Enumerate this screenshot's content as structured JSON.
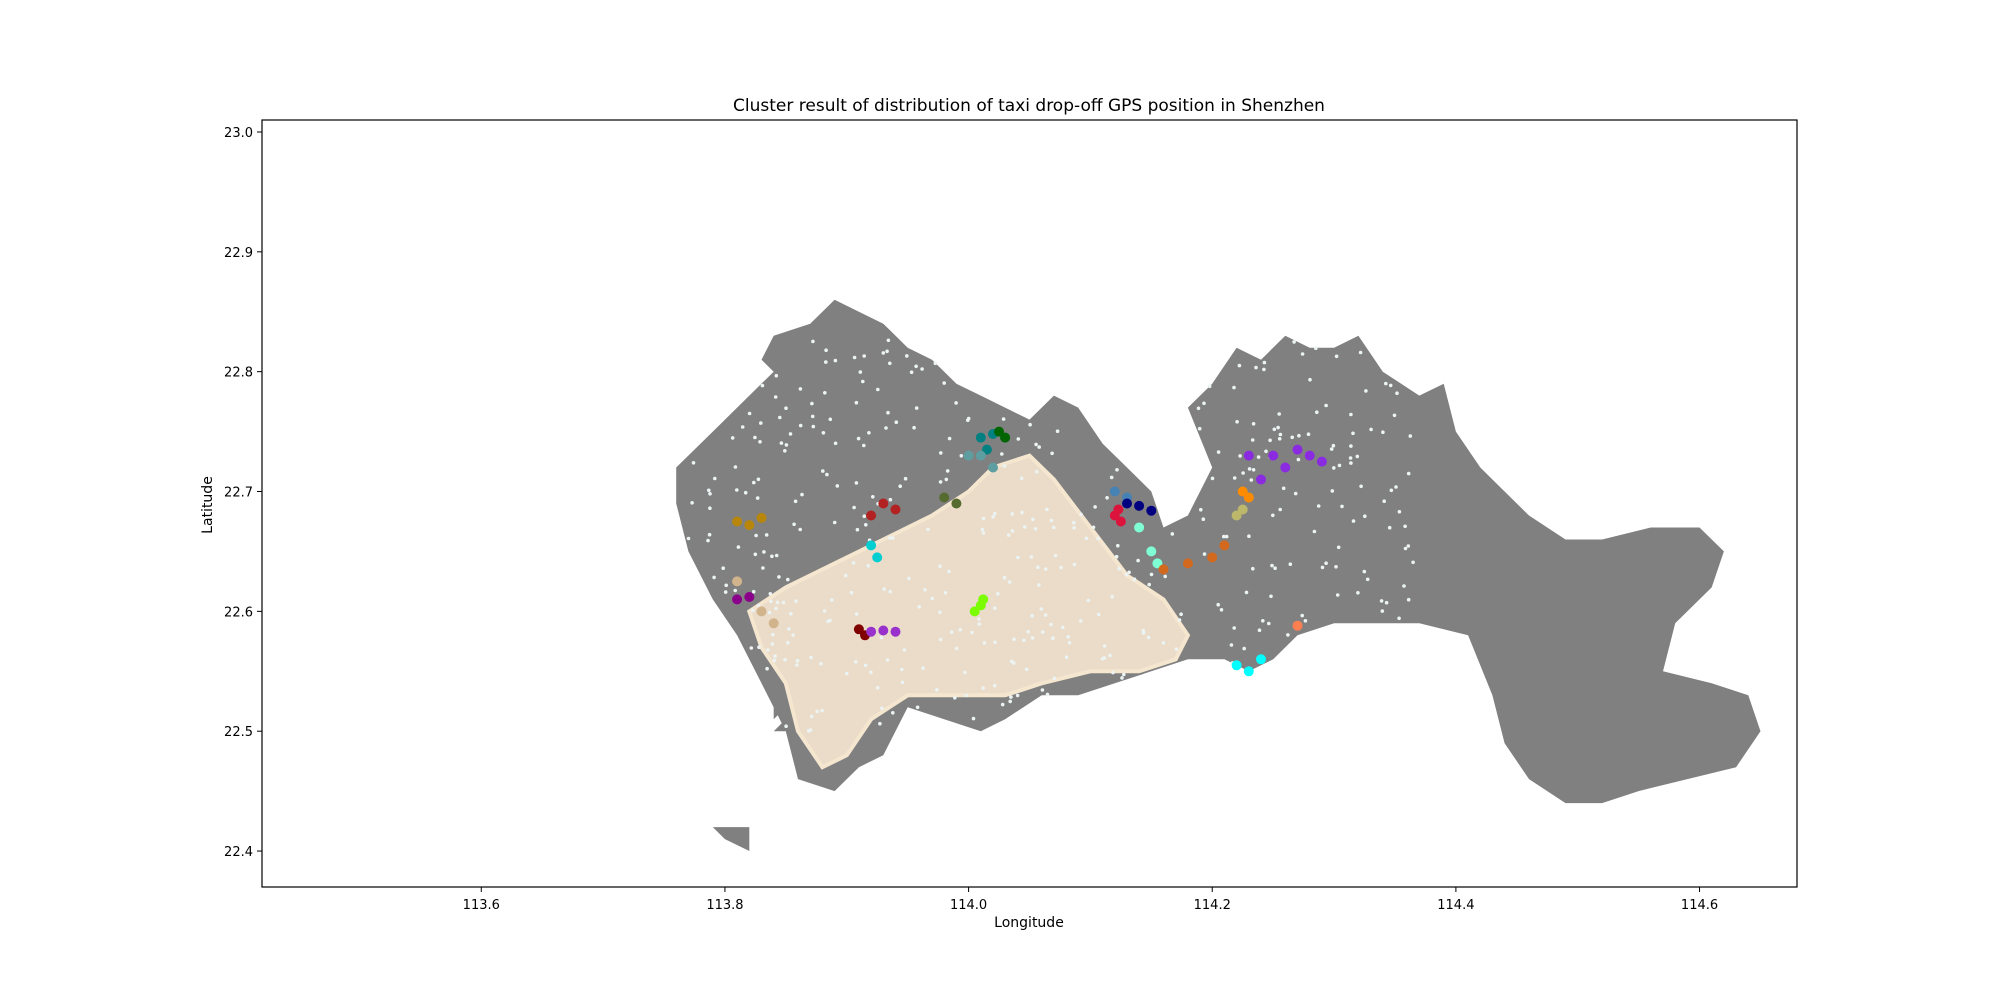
{
  "chart_data": {
    "type": "scatter",
    "title": "Cluster result of distribution of taxi drop-off GPS position in Shenzhen",
    "xlabel": "Longitude",
    "ylabel": "Latitude",
    "xlim": [
      113.42,
      114.68
    ],
    "ylim": [
      22.37,
      23.01
    ],
    "xticks": [
      113.6,
      113.8,
      114.0,
      114.2,
      114.4,
      114.6
    ],
    "yticks": [
      22.4,
      22.5,
      22.6,
      22.7,
      22.8,
      22.9,
      23.0
    ],
    "grid": false,
    "legend": "none",
    "colors": {
      "land": "#808080",
      "noise": "#ecf3f3",
      "main_cluster": "#f5e6d0",
      "axis": "#000000"
    },
    "basemap": {
      "name": "Shenzhen land boundary",
      "mainland": [
        [
          113.76,
          22.72
        ],
        [
          113.79,
          22.75
        ],
        [
          113.82,
          22.78
        ],
        [
          113.84,
          22.8
        ],
        [
          113.83,
          22.81
        ],
        [
          113.84,
          22.83
        ],
        [
          113.87,
          22.84
        ],
        [
          113.89,
          22.86
        ],
        [
          113.91,
          22.85
        ],
        [
          113.93,
          22.84
        ],
        [
          113.95,
          22.82
        ],
        [
          113.97,
          22.81
        ],
        [
          113.99,
          22.79
        ],
        [
          114.01,
          22.78
        ],
        [
          114.03,
          22.77
        ],
        [
          114.05,
          22.76
        ],
        [
          114.07,
          22.78
        ],
        [
          114.09,
          22.77
        ],
        [
          114.11,
          22.74
        ],
        [
          114.13,
          22.72
        ],
        [
          114.15,
          22.7
        ],
        [
          114.16,
          22.67
        ],
        [
          114.18,
          22.68
        ],
        [
          114.2,
          22.72
        ],
        [
          114.18,
          22.77
        ],
        [
          114.2,
          22.79
        ],
        [
          114.22,
          22.82
        ],
        [
          114.24,
          22.81
        ],
        [
          114.26,
          22.83
        ],
        [
          114.28,
          22.82
        ],
        [
          114.3,
          22.82
        ],
        [
          114.32,
          22.83
        ],
        [
          114.34,
          22.8
        ],
        [
          114.37,
          22.78
        ],
        [
          114.39,
          22.79
        ],
        [
          114.4,
          22.75
        ],
        [
          114.42,
          22.72
        ],
        [
          114.44,
          22.7
        ],
        [
          114.46,
          22.68
        ],
        [
          114.49,
          22.66
        ],
        [
          114.52,
          22.66
        ],
        [
          114.56,
          22.67
        ],
        [
          114.6,
          22.67
        ],
        [
          114.62,
          22.65
        ],
        [
          114.61,
          22.62
        ],
        [
          114.58,
          22.59
        ],
        [
          114.57,
          22.55
        ],
        [
          114.61,
          22.54
        ],
        [
          114.64,
          22.53
        ],
        [
          114.65,
          22.5
        ],
        [
          114.63,
          22.47
        ],
        [
          114.59,
          22.46
        ],
        [
          114.55,
          22.45
        ],
        [
          114.52,
          22.44
        ],
        [
          114.49,
          22.44
        ],
        [
          114.46,
          22.46
        ],
        [
          114.44,
          22.49
        ],
        [
          114.43,
          22.53
        ],
        [
          114.41,
          22.58
        ],
        [
          114.37,
          22.59
        ],
        [
          114.33,
          22.59
        ],
        [
          114.3,
          22.59
        ],
        [
          114.27,
          22.58
        ],
        [
          114.25,
          22.56
        ],
        [
          114.23,
          22.55
        ],
        [
          114.21,
          22.56
        ],
        [
          114.18,
          22.56
        ],
        [
          114.15,
          22.55
        ],
        [
          114.12,
          22.54
        ],
        [
          114.09,
          22.53
        ],
        [
          114.06,
          22.53
        ],
        [
          114.03,
          22.51
        ],
        [
          114.01,
          22.5
        ],
        [
          113.98,
          22.51
        ],
        [
          113.95,
          22.52
        ],
        [
          113.93,
          22.48
        ],
        [
          113.91,
          22.47
        ],
        [
          113.89,
          22.45
        ],
        [
          113.86,
          22.46
        ],
        [
          113.85,
          22.5
        ],
        [
          113.83,
          22.54
        ],
        [
          113.81,
          22.58
        ],
        [
          113.79,
          22.61
        ],
        [
          113.77,
          22.65
        ],
        [
          113.76,
          22.69
        ]
      ],
      "islands": [
        [
          [
            113.8,
            22.42
          ],
          [
            113.82,
            22.42
          ],
          [
            113.82,
            22.4
          ],
          [
            113.8,
            22.41
          ],
          [
            113.79,
            22.42
          ]
        ],
        [
          [
            113.84,
            22.5
          ],
          [
            113.85,
            22.51
          ],
          [
            113.85,
            22.5
          ]
        ],
        [
          [
            113.84,
            22.52
          ],
          [
            113.85,
            22.52
          ],
          [
            113.84,
            22.51
          ]
        ]
      ]
    },
    "main_cluster_area": [
      [
        113.82,
        22.6
      ],
      [
        113.85,
        22.62
      ],
      [
        113.89,
        22.64
      ],
      [
        113.93,
        22.66
      ],
      [
        113.97,
        22.68
      ],
      [
        114.0,
        22.7
      ],
      [
        114.02,
        22.72
      ],
      [
        114.05,
        22.73
      ],
      [
        114.07,
        22.71
      ],
      [
        114.1,
        22.67
      ],
      [
        114.13,
        22.63
      ],
      [
        114.16,
        22.61
      ],
      [
        114.18,
        22.58
      ],
      [
        114.17,
        22.56
      ],
      [
        114.14,
        22.55
      ],
      [
        114.1,
        22.55
      ],
      [
        114.06,
        22.54
      ],
      [
        114.03,
        22.53
      ],
      [
        113.99,
        22.53
      ],
      [
        113.95,
        22.53
      ],
      [
        113.92,
        22.51
      ],
      [
        113.9,
        22.48
      ],
      [
        113.88,
        22.47
      ],
      [
        113.86,
        22.5
      ],
      [
        113.85,
        22.54
      ],
      [
        113.83,
        22.57
      ]
    ],
    "clusters": [
      {
        "color": "#008080",
        "x": [
          114.01,
          114.02,
          114.03,
          114.015
        ],
        "y": [
          22.745,
          22.748,
          22.745,
          22.735
        ]
      },
      {
        "color": "#006400",
        "x": [
          114.025,
          114.03
        ],
        "y": [
          22.75,
          22.745
        ]
      },
      {
        "color": "#5f9ea0",
        "x": [
          114.0,
          114.01,
          114.02
        ],
        "y": [
          22.73,
          22.73,
          22.72
        ]
      },
      {
        "color": "#b22222",
        "x": [
          113.92,
          113.93,
          113.94
        ],
        "y": [
          22.68,
          22.69,
          22.685
        ]
      },
      {
        "color": "#556b2f",
        "x": [
          113.98,
          113.99
        ],
        "y": [
          22.695,
          22.69
        ]
      },
      {
        "color": "#00ced1",
        "x": [
          113.92,
          113.925
        ],
        "y": [
          22.655,
          22.645
        ]
      },
      {
        "color": "#b8860b",
        "x": [
          113.81,
          113.82,
          113.83
        ],
        "y": [
          22.675,
          22.672,
          22.678
        ]
      },
      {
        "color": "#d2b48c",
        "x": [
          113.81,
          113.83,
          113.84
        ],
        "y": [
          22.625,
          22.6,
          22.59
        ]
      },
      {
        "color": "#8b008b",
        "x": [
          113.81,
          113.82
        ],
        "y": [
          22.61,
          22.612
        ]
      },
      {
        "color": "#800000",
        "x": [
          113.91,
          113.915
        ],
        "y": [
          22.585,
          22.58
        ]
      },
      {
        "color": "#9932cc",
        "x": [
          113.92,
          113.93,
          113.94
        ],
        "y": [
          22.583,
          22.584,
          22.583
        ]
      },
      {
        "color": "#7cfc00",
        "x": [
          114.005,
          114.01,
          114.012
        ],
        "y": [
          22.6,
          22.605,
          22.61
        ]
      },
      {
        "color": "#4682b4",
        "x": [
          114.12,
          114.13
        ],
        "y": [
          22.7,
          22.695
        ]
      },
      {
        "color": "#000080",
        "x": [
          114.13,
          114.14,
          114.15
        ],
        "y": [
          22.69,
          22.688,
          22.684
        ]
      },
      {
        "color": "#dc143c",
        "x": [
          114.12,
          114.125,
          114.123
        ],
        "y": [
          22.68,
          22.675,
          22.685
        ]
      },
      {
        "color": "#7fffd4",
        "x": [
          114.14,
          114.15,
          114.155
        ],
        "y": [
          22.67,
          22.65,
          22.64
        ]
      },
      {
        "color": "#d2691e",
        "x": [
          114.16,
          114.18,
          114.2,
          114.21
        ],
        "y": [
          22.635,
          22.64,
          22.645,
          22.655
        ]
      },
      {
        "color": "#8a2be2",
        "x": [
          114.23,
          114.24,
          114.25,
          114.26,
          114.27,
          114.28,
          114.29
        ],
        "y": [
          22.73,
          22.71,
          22.73,
          22.72,
          22.735,
          22.73,
          22.725
        ]
      },
      {
        "color": "#ff8c00",
        "x": [
          114.225,
          114.23
        ],
        "y": [
          22.7,
          22.695
        ]
      },
      {
        "color": "#bdb76b",
        "x": [
          114.22,
          114.225
        ],
        "y": [
          22.68,
          22.685
        ]
      },
      {
        "color": "#00ffff",
        "x": [
          114.22,
          114.23,
          114.24
        ],
        "y": [
          22.555,
          22.55,
          22.56
        ]
      },
      {
        "color": "#ff7f50",
        "x": [
          114.27
        ],
        "y": [
          22.588
        ]
      }
    ]
  }
}
